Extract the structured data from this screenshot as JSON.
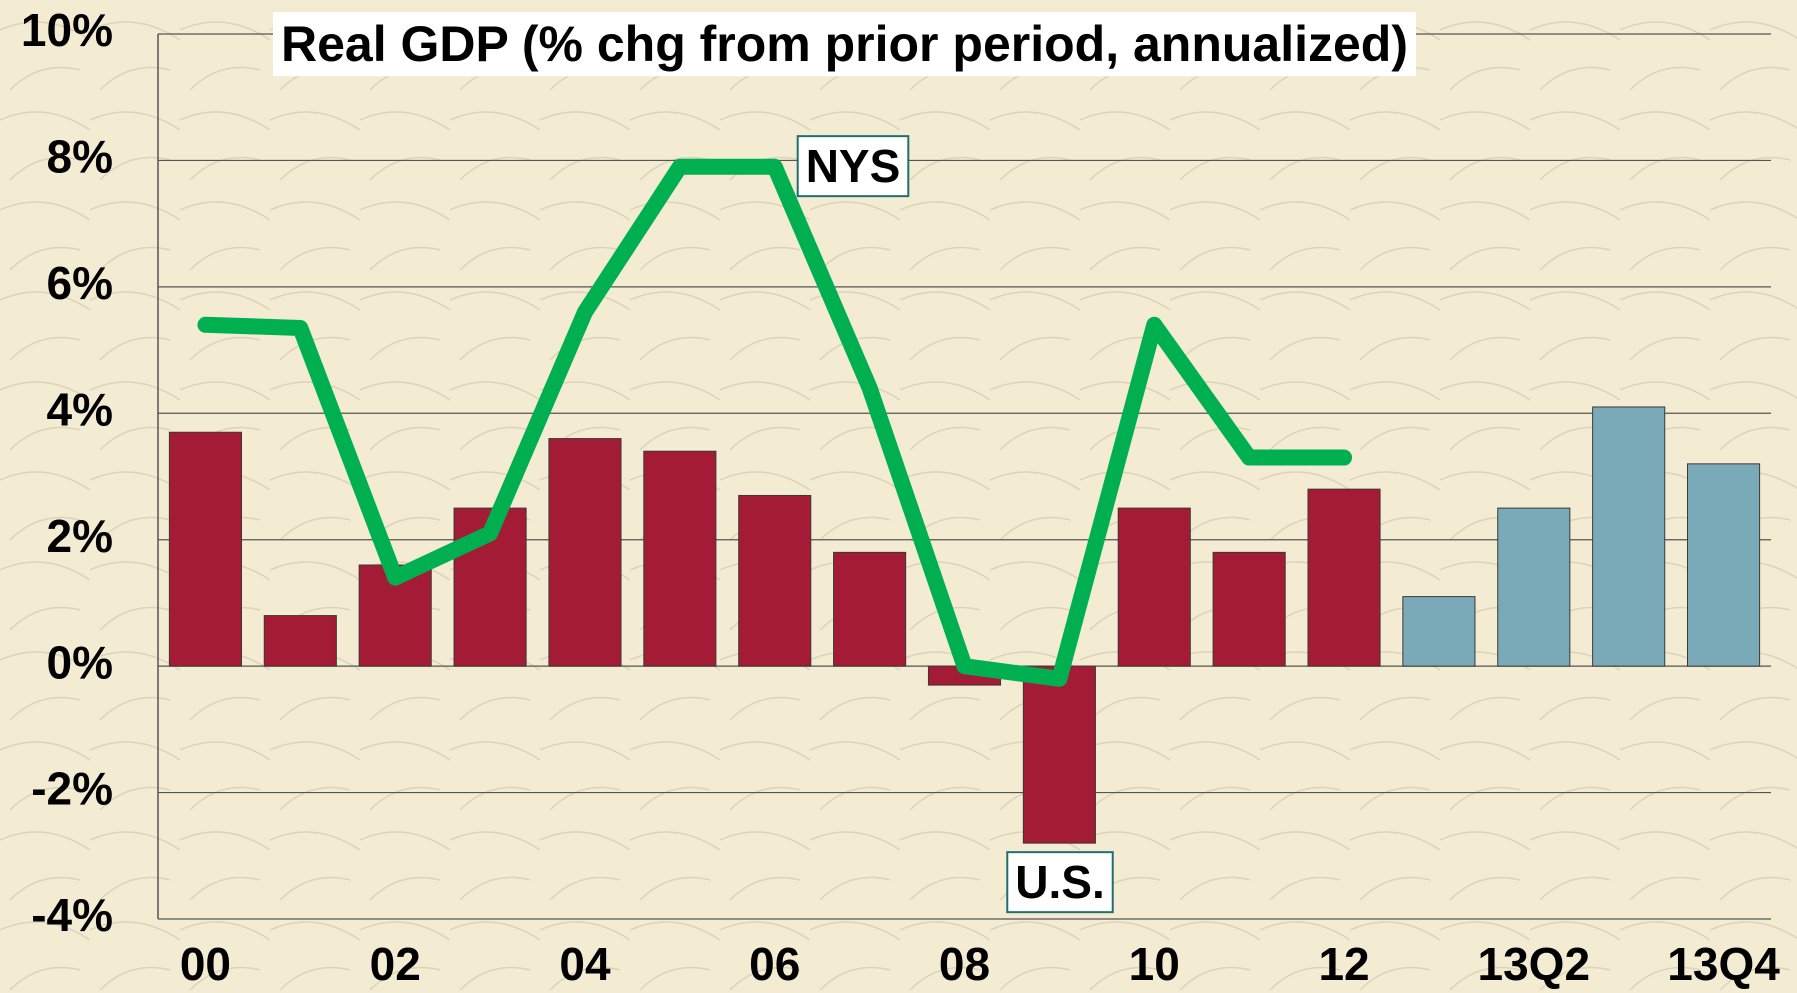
{
  "chart_data": {
    "type": "combo",
    "title": "Real GDP (% chg from prior period, annualized)",
    "categories": [
      "00",
      null,
      "02",
      null,
      "04",
      null,
      "06",
      null,
      "08",
      null,
      "10",
      null,
      "12",
      null,
      "13Q2",
      null,
      "13Q4"
    ],
    "series": [
      {
        "name": "U.S.",
        "type": "bar",
        "colors": [
          "#a31b35",
          "#a31b35",
          "#a31b35",
          "#a31b35",
          "#a31b35",
          "#a31b35",
          "#a31b35",
          "#a31b35",
          "#a31b35",
          "#a31b35",
          "#a31b35",
          "#a31b35",
          "#a31b35",
          "#7aa9b8",
          "#7aa9b8",
          "#7aa9b8",
          "#7aa9b8"
        ],
        "values": [
          3.7,
          0.8,
          1.6,
          2.5,
          3.6,
          3.4,
          2.7,
          1.8,
          -0.3,
          -2.8,
          2.5,
          1.8,
          2.8,
          1.1,
          2.5,
          4.1,
          3.2
        ]
      },
      {
        "name": "NYS",
        "type": "line",
        "color": "#00b050",
        "values": [
          5.4,
          5.35,
          1.4,
          2.1,
          5.6,
          7.9,
          7.9,
          4.4,
          0,
          -0.2,
          5.4,
          3.3,
          3.3,
          null,
          null,
          null,
          null
        ]
      }
    ],
    "ylim": [
      -4,
      10
    ],
    "yticks": [
      {
        "value": -4,
        "label": "-4%"
      },
      {
        "value": -2,
        "label": "-2%"
      },
      {
        "value": 0,
        "label": "0%"
      },
      {
        "value": 2,
        "label": "2%"
      },
      {
        "value": 4,
        "label": "4%"
      },
      {
        "value": 6,
        "label": "6%"
      },
      {
        "value": 8,
        "label": "8%"
      },
      {
        "value": 10,
        "label": "10%"
      }
    ],
    "grid": true
  }
}
